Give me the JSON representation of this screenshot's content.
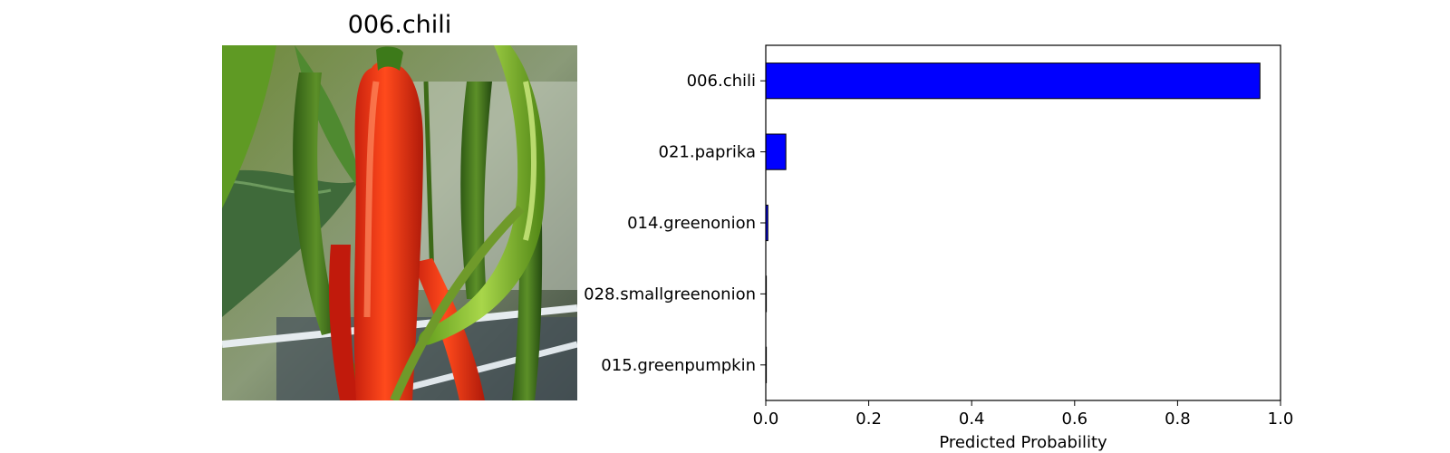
{
  "image_panel": {
    "title": "006.chili",
    "photo_subject": "red-and-green-chili-peppers-photo"
  },
  "chart_data": {
    "type": "bar",
    "orientation": "horizontal",
    "categories": [
      "006.chili",
      "021.paprika",
      "014.greenonion",
      "028.smallgreenonion",
      "015.greenpumpkin"
    ],
    "values": [
      0.96,
      0.039,
      0.004,
      0.001,
      0.001
    ],
    "xlabel": "Predicted Probability",
    "ylabel": "",
    "title": "",
    "xlim": [
      0,
      1.0
    ],
    "xticks": [
      0.0,
      0.2,
      0.4,
      0.6,
      0.8,
      1.0
    ],
    "xtick_labels": [
      "0.0",
      "0.2",
      "0.4",
      "0.6",
      "0.8",
      "1.0"
    ],
    "grid": false,
    "legend": "none",
    "colors": {
      "bar_fill": "#0000ff",
      "bar_edge": "#000000",
      "axes": "#000000"
    }
  }
}
